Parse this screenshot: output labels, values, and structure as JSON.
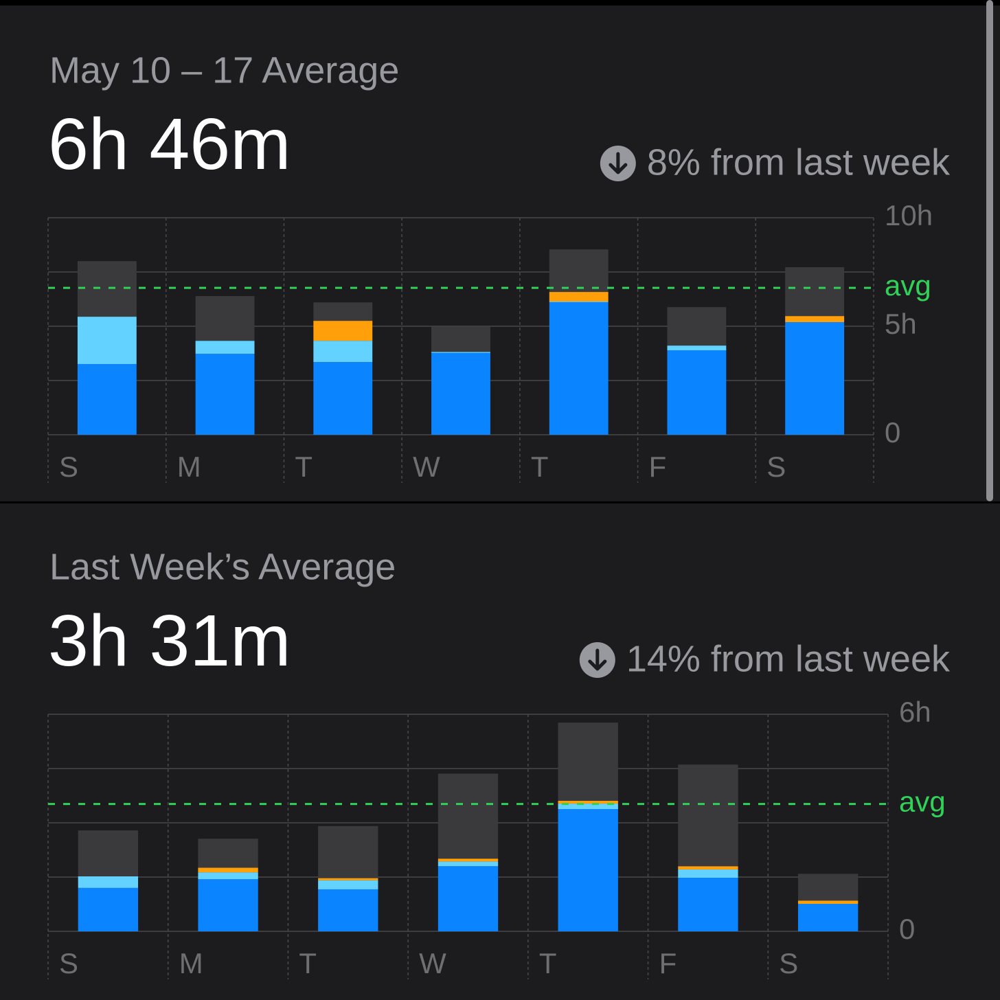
{
  "chart_data": [
    {
      "type": "stacked-bar",
      "title": "May 10 – 17 Average",
      "total": "6h 46m",
      "change": "8% from last week",
      "categories": [
        "S",
        "M",
        "T",
        "W",
        "T",
        "F",
        "S"
      ],
      "series": [
        {
          "color": "#0a84ff",
          "values": [
            3.26,
            3.73,
            3.35,
            3.77,
            6.11,
            3.89,
            5.19
          ]
        },
        {
          "color": "#64d2ff",
          "values": [
            2.18,
            0.6,
            0.98,
            0.05,
            0.03,
            0.22,
            0
          ]
        },
        {
          "color": "#ff9f0a",
          "values": [
            0,
            0,
            0.92,
            0,
            0.44,
            0,
            0.28
          ]
        },
        {
          "color": "#3a3a3c",
          "values": [
            2.56,
            2.06,
            0.85,
            1.17,
            1.96,
            1.77,
            2.25
          ]
        }
      ],
      "ylim": [
        0,
        10
      ],
      "yticks": [
        0,
        {
          "value": 5,
          "label": "5h"
        },
        {
          "value": 10,
          "label": "10h"
        }
      ],
      "minor_yticks": [
        2.5,
        7.5
      ],
      "avg_value": 6.77,
      "avg_label": "avg",
      "avg_color": "#30d158",
      "grid": true
    },
    {
      "type": "stacked-bar",
      "title": "Last Week’s Average",
      "total": "3h 31m",
      "change": "14% from last week",
      "categories": [
        "S",
        "M",
        "T",
        "W",
        "T",
        "F",
        "S"
      ],
      "series": [
        {
          "color": "#0a84ff",
          "values": [
            1.2,
            1.44,
            1.16,
            1.8,
            3.38,
            1.48,
            0.76
          ]
        },
        {
          "color": "#64d2ff",
          "values": [
            0.32,
            0.19,
            0.25,
            0.13,
            0.15,
            0.23,
            0
          ]
        },
        {
          "color": "#ff9f0a",
          "values": [
            0,
            0.13,
            0.06,
            0.08,
            0.08,
            0.09,
            0.09
          ]
        },
        {
          "color": "#3a3a3c",
          "values": [
            1.27,
            0.8,
            1.44,
            2.35,
            2.16,
            2.81,
            0.74
          ]
        }
      ],
      "ylim": [
        0,
        6
      ],
      "yticks": [
        0,
        {
          "value": 6,
          "label": "6h"
        }
      ],
      "minor_yticks": [
        1.5,
        3,
        4.5
      ],
      "avg_value": 3.52,
      "avg_label": "avg",
      "avg_color": "#30d158",
      "grid": true
    }
  ]
}
